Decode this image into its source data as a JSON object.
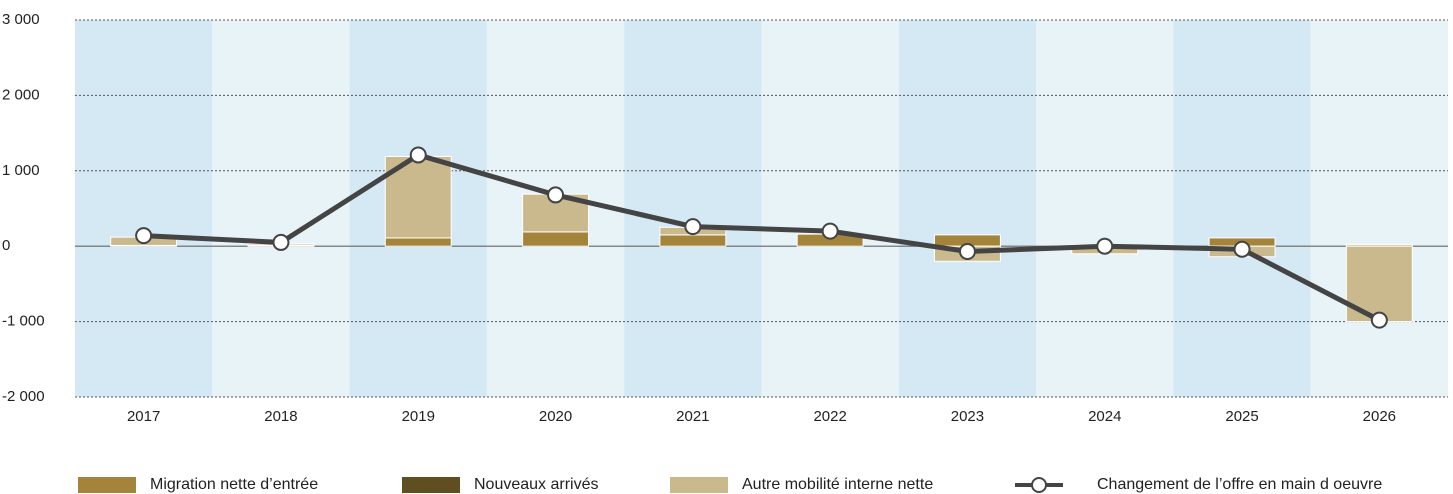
{
  "chart_data": {
    "type": "bar",
    "categories": [
      "2017",
      "2018",
      "2019",
      "2020",
      "2021",
      "2022",
      "2023",
      "2024",
      "2025",
      "2026"
    ],
    "series": [
      {
        "name": "Migration nette d’entrée",
        "color": "#a4843a",
        "values": [
          10,
          10,
          110,
          190,
          150,
          160,
          150,
          20,
          110,
          20
        ]
      },
      {
        "name": "Nouveaux arrivés",
        "color": "#5f4f20",
        "values": [
          0,
          0,
          0,
          0,
          0,
          0,
          0,
          0,
          0,
          0
        ]
      },
      {
        "name": "Autre mobilité interne nette",
        "color": "#c9b98c",
        "values": [
          110,
          20,
          1080,
          500,
          100,
          0,
          -200,
          -100,
          -140,
          -1000
        ]
      },
      {
        "name": "Changement de l’offre en main d oeuvre",
        "color": "#444444",
        "type": "line",
        "values": [
          140,
          50,
          1210,
          680,
          260,
          200,
          -70,
          0,
          -40,
          -980
        ]
      }
    ],
    "ylim": [
      -2000,
      3000
    ],
    "yticks": [
      {
        "value": -2000,
        "label": "-2 000"
      },
      {
        "value": -1000,
        "label": "-1 000"
      },
      0,
      {
        "value": 1000,
        "label": "1 000"
      },
      {
        "value": 2000,
        "label": "2 000"
      },
      {
        "value": 3000,
        "label": "3 000"
      }
    ],
    "grid": true,
    "legend": "bottom"
  }
}
